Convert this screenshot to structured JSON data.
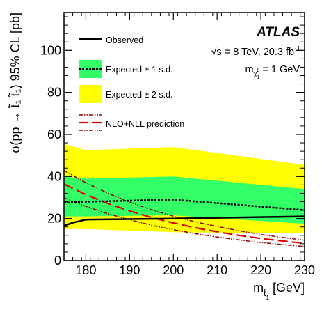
{
  "chart_data": {
    "type": "area",
    "experiment": "ATLAS",
    "energy_label": "√s = 8 TeV, 20.3 fb",
    "energy_superscript": "-1",
    "mass_label_prefix": "m",
    "mass_label_sub": "χ̃",
    "mass_label_sub_sup": "0",
    "mass_label_sub_sub": "1",
    "mass_label_value": " = 1 GeV",
    "xlabel": "m",
    "xlabel_sub": "t̃",
    "xlabel_sub_sub": "1",
    "xlabel_unit": " [GeV]",
    "ylabel": "σ(pp → t̃₁ t̃₁) 95% CL [pb]",
    "xlim": [
      175,
      230
    ],
    "ylim": [
      0,
      118
    ],
    "x_ticks": [
      180,
      190,
      200,
      210,
      220,
      230
    ],
    "x_tick_labels": [
      "180",
      "190",
      "200",
      "210",
      "220",
      "230"
    ],
    "y_ticks": [
      0,
      20,
      40,
      60,
      80,
      100
    ],
    "y_tick_labels": [
      "0",
      "20",
      "40",
      "60",
      "80",
      "100"
    ],
    "legend": {
      "placement": "top-left",
      "observed": "Observed",
      "expected_1sd": "Expected ± 1 s.d.",
      "expected_2sd": "Expected ± 2 s.d.",
      "theory": "NLO+NLL prediction"
    },
    "colors": {
      "band_2sd": "#ffff00",
      "band_1sd": "#33ff66",
      "theory": "#e00000",
      "theory_band": "#8b0000",
      "observed": "#000000",
      "expected": "#000000"
    },
    "series": {
      "band_2sd_upper": {
        "x": [
          175,
          180,
          200,
          230
        ],
        "y": [
          55.5,
          52.5,
          54,
          45.5
        ]
      },
      "band_2sd_lower": {
        "x": [
          175,
          180,
          200,
          230
        ],
        "y": [
          15,
          15,
          13.5,
          13
        ]
      },
      "band_1sd_upper": {
        "x": [
          175,
          180,
          200,
          230
        ],
        "y": [
          40,
          39,
          40,
          34
        ]
      },
      "band_1sd_lower": {
        "x": [
          175,
          180,
          200,
          230
        ],
        "y": [
          21,
          21,
          21.5,
          17.5
        ]
      },
      "expected": {
        "x": [
          175,
          180,
          200,
          230
        ],
        "y": [
          27.5,
          28,
          29,
          24
        ]
      },
      "observed": {
        "x": [
          175,
          177,
          180,
          200,
          230
        ],
        "y": [
          16.5,
          18,
          19.5,
          20,
          21
        ]
      },
      "theory_central": {
        "x": [
          175,
          180,
          185,
          190,
          195,
          200,
          205,
          210,
          215,
          220,
          225,
          230
        ],
        "y": [
          36.4,
          31.4,
          27.2,
          23.6,
          20.5,
          17.9,
          15.6,
          13.7,
          12.0,
          10.5,
          9.3,
          8.2
        ]
      },
      "theory_upper": {
        "x": [
          175,
          180,
          185,
          190,
          195,
          200,
          205,
          210,
          215,
          220,
          225,
          230
        ],
        "y": [
          42.9,
          37.0,
          32.1,
          27.8,
          24.2,
          21.1,
          18.4,
          16.2,
          14.2,
          12.4,
          11.0,
          9.7
        ]
      },
      "theory_lower": {
        "x": [
          175,
          180,
          185,
          190,
          195,
          200,
          205,
          210,
          215,
          220,
          225,
          230
        ],
        "y": [
          29.9,
          25.8,
          22.3,
          19.4,
          16.8,
          14.7,
          12.8,
          11.2,
          9.8,
          8.6,
          7.6,
          6.7
        ]
      }
    }
  }
}
